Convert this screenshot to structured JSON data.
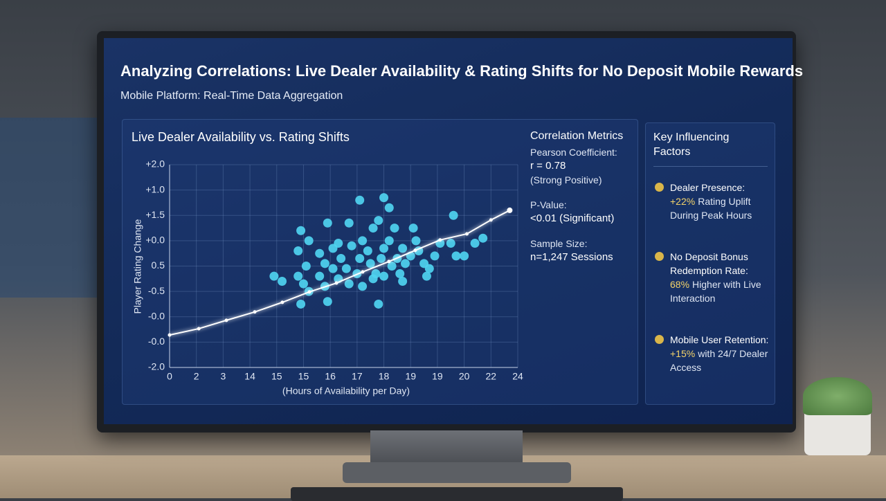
{
  "header": {
    "title": "Analyzing Correlations: Live Dealer Availability & Rating Shifts for No Deposit Mobile Rewards",
    "subtitle": "Mobile Platform: Real-Time Data Aggregation"
  },
  "chart_data": {
    "type": "scatter",
    "title": "Live Dealer Availability vs. Rating Shifts",
    "xlabel": "(Hours of Availability per Day)",
    "ylabel": "Player Rating Change",
    "x": [
      7.1,
      8.0,
      8.2,
      4.9,
      5.9,
      6.7,
      7.6,
      7.8,
      9.1,
      8.4,
      10.6,
      3.9,
      4.2,
      4.8,
      5.2,
      5.6,
      5.8,
      6.1,
      6.3,
      6.4,
      6.6,
      6.8,
      7.1,
      7.2,
      7.4,
      7.5,
      7.7,
      7.9,
      8.0,
      8.2,
      8.3,
      8.5,
      8.7,
      8.8,
      9.0,
      9.2,
      9.3,
      9.5,
      9.6,
      9.7,
      9.9,
      10.1,
      10.5,
      10.7,
      11.0,
      11.4,
      11.7,
      4.8,
      5.0,
      5.2,
      5.6,
      5.8,
      6.1,
      6.3,
      6.7,
      7.0,
      7.2,
      7.6,
      8.0,
      8.6,
      8.7,
      4.9,
      5.9,
      7.8,
      5.1
    ],
    "values": [
      6.6,
      6.7,
      6.3,
      5.4,
      5.7,
      5.7,
      5.5,
      5.8,
      5.5,
      5.5,
      6.0,
      3.6,
      3.4,
      4.6,
      5.0,
      4.5,
      4.1,
      4.7,
      4.9,
      4.3,
      3.9,
      4.8,
      4.3,
      5.0,
      4.6,
      4.1,
      3.7,
      4.3,
      4.7,
      5.0,
      4.0,
      4.3,
      4.7,
      4.1,
      4.4,
      5.0,
      4.6,
      4.1,
      3.6,
      3.9,
      4.4,
      4.9,
      4.9,
      4.4,
      4.4,
      4.9,
      5.1,
      3.6,
      3.3,
      3.0,
      3.6,
      3.2,
      3.9,
      3.5,
      3.3,
      3.7,
      3.2,
      3.5,
      3.6,
      3.7,
      3.4,
      2.5,
      2.6,
      2.5,
      4.0
    ],
    "color": "#4fd3f0",
    "trend": {
      "x": [
        0,
        1.09,
        2.12,
        3.18,
        4.21,
        5.22,
        6.23,
        7.21,
        8.19,
        9.17,
        10.1,
        11.1,
        12.0,
        12.7
      ],
      "values": [
        1.28,
        1.53,
        1.86,
        2.19,
        2.57,
        2.98,
        3.33,
        3.77,
        4.18,
        4.62,
        5.03,
        5.27,
        5.82,
        6.2
      ],
      "color": "#ffffff"
    },
    "xlim": [
      0,
      13
    ],
    "ylim": [
      0,
      8
    ],
    "xticks": [
      {
        "value": 0,
        "label": "0"
      },
      {
        "value": 1,
        "label": "2"
      },
      {
        "value": 2,
        "label": "3"
      },
      {
        "value": 3,
        "label": "14"
      },
      {
        "value": 4,
        "label": "15"
      },
      {
        "value": 5,
        "label": "15"
      },
      {
        "value": 6,
        "label": "16"
      },
      {
        "value": 7,
        "label": "17"
      },
      {
        "value": 8,
        "label": "18"
      },
      {
        "value": 9,
        "label": "19"
      },
      {
        "value": 10,
        "label": "19"
      },
      {
        "value": 11,
        "label": "20"
      },
      {
        "value": 12,
        "label": "22"
      },
      {
        "value": 13,
        "label": "24"
      }
    ],
    "yticks": [
      {
        "value": 8,
        "label": "+2.0"
      },
      {
        "value": 7,
        "label": "+1.0"
      },
      {
        "value": 6,
        "label": "+1.5"
      },
      {
        "value": 5,
        "label": "+0.0"
      },
      {
        "value": 4,
        "label": "0.5"
      },
      {
        "value": 3,
        "label": "-0.5"
      },
      {
        "value": 2,
        "label": "-0.0"
      },
      {
        "value": 1,
        "label": "-0.0"
      },
      {
        "value": 0,
        "label": "-2.0"
      }
    ],
    "grid": true
  },
  "metrics": {
    "title": "Correlation Metrics",
    "items": [
      "Pearson Coefficient:",
      "r = 0.78",
      "(Strong Positive)",
      "P-Value:",
      "<0.01 (Significant)",
      "Sample Size:",
      "n=1,247 Sessions"
    ]
  },
  "factors": {
    "title": "Key Influencing Factors",
    "items": [
      {
        "title": "Dealer Presence:",
        "highlight": "+22%",
        "text": "Rating Uplift During Peak Hours"
      },
      {
        "title": "No Deposit Bonus Redemption Rate:",
        "highlight": "68%",
        "text": "Higher with Live Interaction"
      },
      {
        "title": "Mobile User Retention:",
        "highlight": "+15%",
        "text": "with 24/7 Dealer Access"
      }
    ]
  }
}
